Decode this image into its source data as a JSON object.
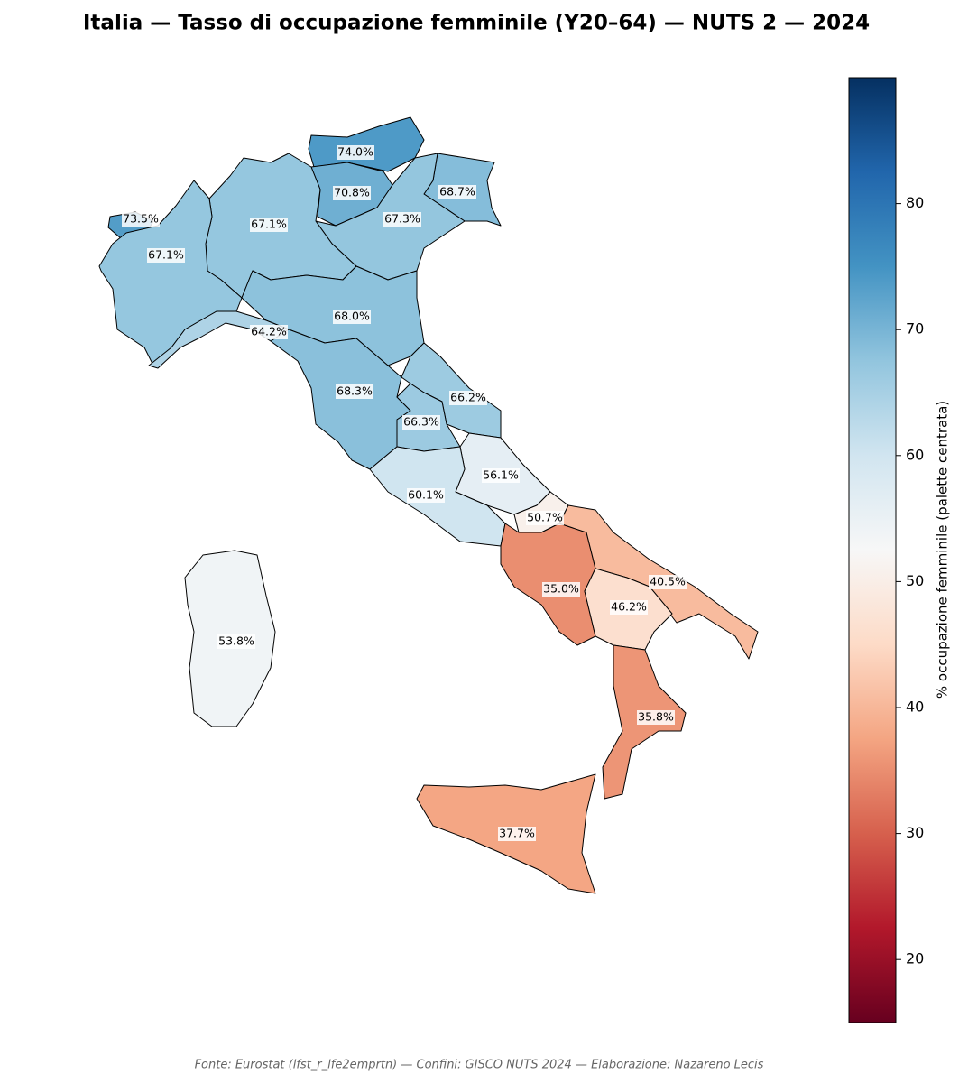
{
  "chart_data": {
    "type": "choropleth",
    "title": "Italia — Tasso di occupazione femminile (Y20–64) — NUTS 2 — 2024",
    "source": "Fonte: Eurostat (lfst_r_lfe2emprtn) — Confini: GISCO NUTS 2024 — Elaborazione: Nazareno Lecis",
    "colorbar_label": "% occupazione femminile (palette centrata)",
    "colormap": "RdBu",
    "values": [
      74.0,
      70.8,
      68.7,
      67.3,
      73.5,
      67.1,
      67.1,
      68.0,
      64.2,
      68.3,
      66.2,
      66.3,
      56.1,
      60.1,
      50.7,
      35.0,
      40.5,
      46.2,
      35.8,
      37.7,
      53.8
    ],
    "value_labels": [
      "74.0%",
      "70.8%",
      "68.7%",
      "67.3%",
      "73.5%",
      "67.1%",
      "67.1%",
      "68.0%",
      "64.2%",
      "68.3%",
      "66.2%",
      "66.3%",
      "56.1%",
      "60.1%",
      "50.7%",
      "35.0%",
      "40.5%",
      "46.2%",
      "35.8%",
      "37.7%",
      "53.8%"
    ],
    "clim": [
      15,
      90
    ],
    "cticks": [
      20,
      30,
      40,
      50,
      60,
      70,
      80
    ]
  }
}
